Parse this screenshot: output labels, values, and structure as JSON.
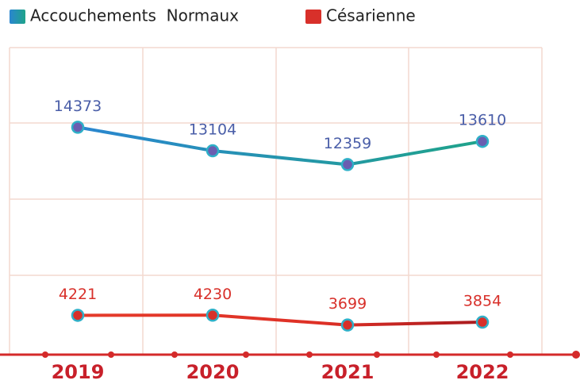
{
  "chart_data": {
    "type": "line",
    "categories": [
      "2019",
      "2020",
      "2021",
      "2022"
    ],
    "series": [
      {
        "name": "Accouchements  Normaux",
        "color": "#2a8fd0",
        "values": [
          14373,
          13104,
          12359,
          13610
        ]
      },
      {
        "name": "Césarienne",
        "color": "#e0352a",
        "values": [
          4221,
          4230,
          3699,
          3854
        ]
      }
    ],
    "ylim": [
      2100,
      19100
    ],
    "grid": true
  }
}
